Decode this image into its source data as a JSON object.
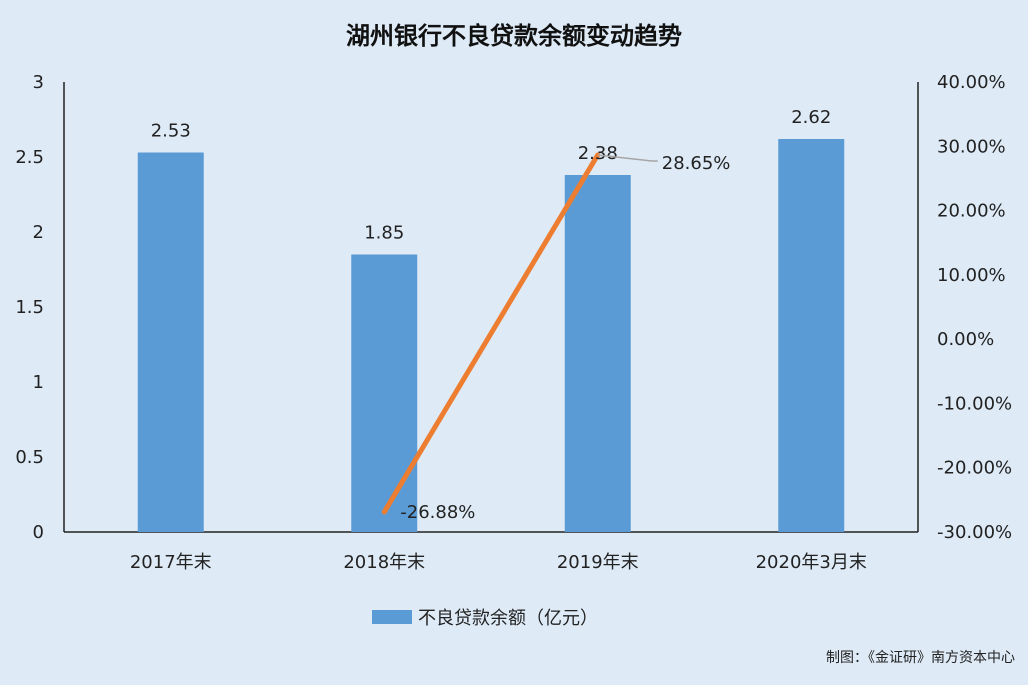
{
  "chart_data": {
    "type": "bar",
    "title": "湖州银行不良贷款余额变动趋势",
    "categories": [
      "2017年末",
      "2018年末",
      "2019年末",
      "2020年3月末"
    ],
    "series": [
      {
        "name": "不良贷款余额（亿元）",
        "type": "bar",
        "axis": "left",
        "values": [
          2.53,
          1.85,
          2.38,
          2.62
        ],
        "labels": [
          "2.53",
          "1.85",
          "2.38",
          "2.62"
        ],
        "color": "#5b9bd5"
      },
      {
        "type": "line",
        "axis": "right",
        "points": [
          {
            "category": "2018年末",
            "value": -26.88,
            "label": "-26.88%"
          },
          {
            "category": "2019年末",
            "value": 28.65,
            "label": "28.65%"
          }
        ],
        "color": "#ed7d31"
      }
    ],
    "y_left": {
      "min": 0,
      "max": 3,
      "ticks": [
        "0",
        "0.5",
        "1",
        "1.5",
        "2",
        "2.5",
        "3"
      ]
    },
    "y_right": {
      "min": -30,
      "max": 40,
      "ticks": [
        "-30.00%",
        "-20.00%",
        "-10.00%",
        "0.00%",
        "10.00%",
        "20.00%",
        "30.00%",
        "40.00%"
      ]
    },
    "grid": false,
    "legend": "bottom-center",
    "credit": "制图：《金证研》南方资本中心"
  }
}
